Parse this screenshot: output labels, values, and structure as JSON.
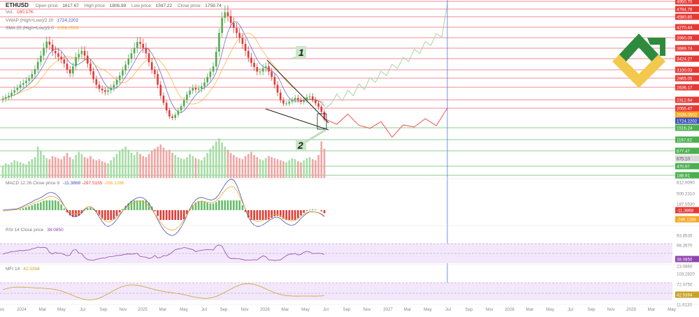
{
  "symbol": "ETHUSD",
  "ohlc": {
    "open_label": "Open price:",
    "open_value": "1617.67",
    "high_label": "High price:",
    "high_value": "1806.89",
    "low_label": "Low price:",
    "low_value": "1597.22",
    "close_label": "Close price:",
    "close_value": "1759.74"
  },
  "volume": {
    "label": "Vol.",
    "value": "160.17K"
  },
  "vwap": {
    "label": "VWAP (High+Low)/2 20",
    "value": "1724.2202",
    "color": "#3f51b5"
  },
  "sma": {
    "label": "SMA 25 (High+Low)/2 0",
    "value": "2038.0502",
    "color": "#f5a623"
  },
  "macd": {
    "label": "MACD 12 26 Close price 9",
    "v1": "-11.3868",
    "v2": "-297.5155",
    "v3": "-286.1286"
  },
  "rsi": {
    "label": "RSI 14 Close price",
    "value": "38.0850"
  },
  "mfi": {
    "label": "MFI 14",
    "value": "42.5394"
  },
  "annotations": [
    "1",
    "2"
  ],
  "colors": {
    "bull": "#4caf50",
    "bear": "#e53935",
    "level_line": "#f06070",
    "green_line": "#66bb6a",
    "forecast_up": "#a5d6a7",
    "forecast_down": "#ef5350",
    "now_line": "#4b7be5",
    "osc_fill": "#f3e8fb",
    "rsi_line": "#8e44ad",
    "mfi_line": "#c9a227",
    "price_tag_blue": "#3f51b5",
    "price_tag_orange": "#f5a623"
  },
  "chart_data": [
    {
      "type": "candlestick",
      "title": "ETHUSD",
      "x_axis_labels": [
        "ov",
        "2024",
        "Mar",
        "May",
        "Jul",
        "Sep",
        "Nov",
        "2025",
        "Mar",
        "May",
        "Jul",
        "Sep",
        "Nov",
        "2026",
        "Mar",
        "May",
        "Jul",
        "Sep",
        "Nov",
        "2027",
        "Mar",
        "May",
        "Jul",
        "Sep",
        "Nov",
        "2028",
        "Mar",
        "May",
        "Jul",
        "Sep",
        "Nov",
        "2029",
        "Mar",
        "May"
      ],
      "price_levels": [
        {
          "value": "4950.70",
          "color": "red"
        },
        {
          "value": "4784.78",
          "color": "red"
        },
        {
          "value": "4580.80",
          "color": "red"
        },
        {
          "value": "4270.44",
          "color": "red"
        },
        {
          "value": "3960.09",
          "color": "red"
        },
        {
          "value": "3689.74",
          "color": "red"
        },
        {
          "value": "3424.27",
          "color": "red"
        },
        {
          "value": "3100.03",
          "color": "red"
        },
        {
          "value": "2865.05",
          "color": "red"
        },
        {
          "value": "2636.17",
          "color": "red"
        },
        {
          "value": "2312.64",
          "color": "red"
        },
        {
          "value": "2055.47",
          "color": "red"
        },
        {
          "value": "1724.2202",
          "color": "blue"
        },
        {
          "value": "1516.24",
          "color": "green"
        },
        {
          "value": "1167.82",
          "color": "green"
        },
        {
          "value": "877.47",
          "color": "green"
        },
        {
          "value": "470.97",
          "color": "green"
        },
        {
          "value": "188.91",
          "color": "green"
        }
      ],
      "other_tags": [
        {
          "value": "2038.0502",
          "color": "orange"
        },
        {
          "value": "675.10",
          "color": "gray"
        }
      ],
      "close": [
        2340,
        2380,
        2420,
        2500,
        2560,
        2620,
        2700,
        2740,
        2800,
        2860,
        2980,
        3120,
        3330,
        3500,
        3700,
        3860,
        3780,
        3620,
        3560,
        3470,
        3400,
        3280,
        3110,
        3000,
        3200,
        3460,
        3540,
        3620,
        3500,
        3280,
        3060,
        2840,
        2700,
        2600,
        2560,
        2520,
        2560,
        2620,
        2700,
        2820,
        2940,
        3080,
        3250,
        3420,
        3560,
        3700,
        3850,
        3800,
        3700,
        3560,
        3320,
        3100,
        2980,
        2700,
        2420,
        2220,
        2000,
        1840,
        1800,
        1880,
        1990,
        2120,
        2300,
        2450,
        2550,
        2620,
        2580,
        2600,
        2660,
        2760,
        2900,
        3050,
        3200,
        3600,
        4100,
        4550,
        4700,
        4600,
        4400,
        4250,
        4100,
        3960,
        3800,
        3620,
        3450,
        3300,
        3180,
        3050,
        3050,
        3150,
        3200,
        3050,
        2900,
        2700,
        2500,
        2300,
        2200,
        2200,
        2260,
        2300,
        2360,
        2300,
        2250,
        2300,
        2380,
        2400,
        2310,
        2210,
        2100,
        1960,
        1760
      ],
      "volume": [
        22,
        28,
        26,
        30,
        34,
        32,
        30,
        28,
        26,
        32,
        36,
        40,
        60,
        52,
        44,
        38,
        36,
        42,
        40,
        38,
        36,
        42,
        48,
        40,
        36,
        44,
        50,
        46,
        40,
        38,
        42,
        36,
        34,
        36,
        32,
        30,
        28,
        34,
        40,
        46,
        52,
        56,
        60,
        54,
        48,
        44,
        50,
        46,
        42,
        40,
        46,
        52,
        56,
        60,
        64,
        58,
        52,
        54,
        48,
        44,
        40,
        38,
        36,
        40,
        46,
        42,
        38,
        36,
        34,
        40,
        48,
        56,
        62,
        70,
        76,
        68,
        60,
        54,
        48,
        44,
        40,
        38,
        36,
        42,
        46,
        50,
        44,
        40,
        36,
        34,
        38,
        42,
        40,
        38,
        36,
        34,
        32,
        30,
        34,
        38,
        36,
        32,
        30,
        34,
        38,
        40,
        36,
        34,
        44,
        70,
        56
      ],
      "forecast_up": [
        2060,
        2200,
        2460,
        2280,
        2560,
        2420,
        2720,
        2580,
        2880,
        2760,
        3060,
        2940,
        3260,
        3140,
        3460,
        3340,
        3660,
        3560,
        3860,
        3760,
        4080,
        3980,
        4900
      ],
      "forecast_down": [
        1760,
        1620,
        1900,
        1590,
        1500,
        1700,
        1240,
        1600,
        1540,
        1780,
        1580,
        2060
      ]
    },
    {
      "type": "bar",
      "title": "MACD 12 26 Close price 9",
      "axis_ticks": [
        "812.9090",
        "500.2310",
        "187.5530",
        "-11.3868",
        "-286.1286"
      ]
    },
    {
      "type": "line",
      "title": "RSI 14 Close price",
      "axis_ticks": [
        "93.8530",
        "68.2670",
        "38.0850",
        "23.0860"
      ]
    },
    {
      "type": "line",
      "title": "MFI 14",
      "axis_ticks": [
        "103.2820",
        "72.3750",
        "42.5394",
        "11.8130"
      ]
    }
  ]
}
